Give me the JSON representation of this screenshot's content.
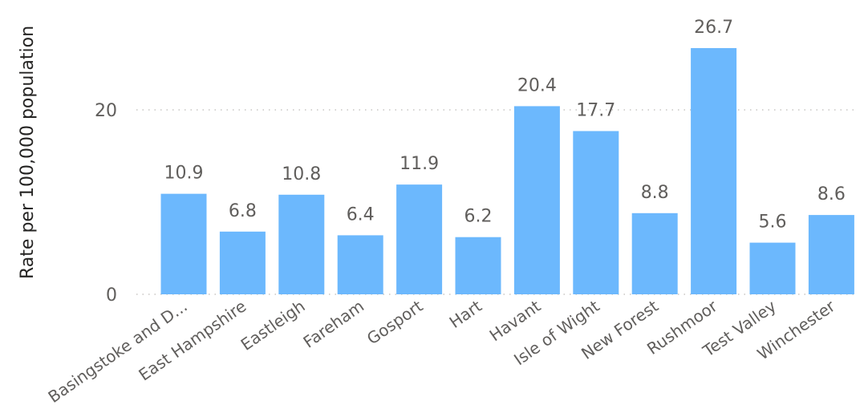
{
  "chart_data": {
    "type": "bar",
    "title": "",
    "xlabel": "",
    "ylabel": "Rate per 100,000 population",
    "categories": [
      "Basingstoke and D...",
      "East Hampshire",
      "Eastleigh",
      "Fareham",
      "Gosport",
      "Hart",
      "Havant",
      "Isle of Wight",
      "New Forest",
      "Rushmoor",
      "Test Valley",
      "Winchester"
    ],
    "values": [
      10.9,
      6.8,
      10.8,
      6.4,
      11.9,
      6.2,
      20.4,
      17.7,
      8.8,
      26.7,
      5.6,
      8.6
    ],
    "data_labels": [
      "10.9",
      "6.8",
      "10.8",
      "6.4",
      "11.9",
      "6.2",
      "20.4",
      "17.7",
      "8.8",
      "26.7",
      "5.6",
      "8.6"
    ],
    "yticks": [
      0,
      20
    ],
    "ylim": [
      0,
      29.5
    ],
    "grid": true,
    "bar_color": "#6cb8fd"
  }
}
